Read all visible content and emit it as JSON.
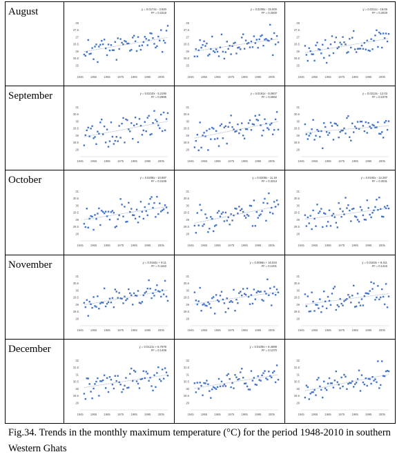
{
  "caption": "Fig.34. Trends in the monthly maximum temperature (°C) for the period 1948-2010 in southern Western Ghats",
  "x_ticks": [
    "1945",
    "1955",
    "1965",
    "1975",
    "1985",
    "1995",
    "2005"
  ],
  "chart_data": [
    {
      "type": "scatter",
      "month": "August",
      "panel": 1,
      "equation": "y = 0.0174x - 3.920",
      "r2": "R² = 0.2318",
      "ylim": [
        24.5,
        28.5
      ],
      "yticks": [
        "25",
        "25.5",
        "26",
        "26.5",
        "27",
        "27.5",
        "28"
      ],
      "seed": 11
    },
    {
      "type": "scatter",
      "month": "August",
      "panel": 2,
      "equation": "y = 0.0208x - 15.000",
      "r2": "R² = 0.2500",
      "ylim": [
        24.5,
        28.5
      ],
      "yticks": [
        "25",
        "25.5",
        "26",
        "26.5",
        "27",
        "27.5",
        "28"
      ],
      "seed": 12
    },
    {
      "type": "scatter",
      "month": "August",
      "panel": 3,
      "equation": "y = 0.0211x - 15.05",
      "r2": "R² = 0.3029",
      "ylim": [
        24.5,
        28.5
      ],
      "yticks": [
        "25",
        "25.5",
        "26",
        "26.5",
        "27",
        "27.5",
        "28"
      ],
      "seed": 13
    },
    {
      "type": "scatter",
      "month": "September",
      "panel": 1,
      "equation": "y = 0.0210x - 5.2190",
      "r2": "R² = 0.2885",
      "ylim": [
        27.5,
        31.5
      ],
      "yticks": [
        "28",
        "28.5",
        "29",
        "29.5",
        "30",
        "30.5",
        "31"
      ],
      "seed": 21
    },
    {
      "type": "scatter",
      "month": "September",
      "panel": 2,
      "equation": "y = 0.0191x - 8.0607",
      "r2": "R² = 0.2862",
      "ylim": [
        27.5,
        31.5
      ],
      "yticks": [
        "28",
        "28.5",
        "29",
        "29.5",
        "30",
        "30.5",
        "31"
      ],
      "seed": 22
    },
    {
      "type": "scatter",
      "month": "September",
      "panel": 3,
      "equation": "y = 0.0213x - 12.03",
      "r2": "R² = 0.2378",
      "ylim": [
        27.5,
        31.5
      ],
      "yticks": [
        "28",
        "28.5",
        "29",
        "29.5",
        "30",
        "30.5",
        "31"
      ],
      "seed": 23
    },
    {
      "type": "scatter",
      "month": "October",
      "panel": 1,
      "equation": "y = 0.0208x - 10.897",
      "r2": "R² = 0.3108",
      "ylim": [
        27.5,
        31.5
      ],
      "yticks": [
        "28",
        "28.5",
        "29",
        "29.5",
        "30",
        "30.5",
        "31"
      ],
      "seed": 31
    },
    {
      "type": "scatter",
      "month": "October",
      "panel": 2,
      "equation": "y = 0.0208x - 11.16",
      "r2": "R² = 0.3313",
      "ylim": [
        27.5,
        31.5
      ],
      "yticks": [
        "28",
        "28.5",
        "29",
        "29.5",
        "30",
        "30.5",
        "31"
      ],
      "seed": 32
    },
    {
      "type": "scatter",
      "month": "October",
      "panel": 3,
      "equation": "y = 0.0193x - 12.287",
      "r2": "R² = 0.3031",
      "ylim": [
        27.5,
        31.5
      ],
      "yticks": [
        "28",
        "28.5",
        "29",
        "29.5",
        "30",
        "30.5",
        "31"
      ],
      "seed": 33
    },
    {
      "type": "scatter",
      "month": "November",
      "panel": 1,
      "equation": "y = 0.0162x + 9.11",
      "r2": "R² = 0.1163",
      "ylim": [
        27.5,
        31.5
      ],
      "yticks": [
        "28",
        "28.5",
        "29",
        "29.5",
        "30",
        "30.5",
        "31"
      ],
      "seed": 41
    },
    {
      "type": "scatter",
      "month": "November",
      "panel": 2,
      "equation": "y = 0.0066x + 16.634",
      "r2": "R² = 0.1201",
      "ylim": [
        27.5,
        31.5
      ],
      "yticks": [
        "28",
        "28.5",
        "29",
        "29.5",
        "30",
        "30.5",
        "31"
      ],
      "seed": 42
    },
    {
      "type": "scatter",
      "month": "November",
      "panel": 3,
      "equation": "y = 0.0163x + 9.411",
      "r2": "R² = 0.1316",
      "ylim": [
        27.5,
        31.5
      ],
      "yticks": [
        "28",
        "28.5",
        "29",
        "29.5",
        "30",
        "30.5",
        "31"
      ],
      "seed": 43
    },
    {
      "type": "scatter",
      "month": "December",
      "panel": 1,
      "equation": "y = 0.0121x + 6.7978",
      "r2": "R² = 0.1408",
      "ylim": [
        28.5,
        32.5
      ],
      "yticks": [
        "29",
        "29.5",
        "30",
        "30.5",
        "31",
        "31.5",
        "32"
      ],
      "seed": 51
    },
    {
      "type": "scatter",
      "month": "December",
      "panel": 2,
      "equation": "y = 0.0109x + 8.4889",
      "r2": "R² = 0.1370",
      "ylim": [
        28.5,
        32.5
      ],
      "yticks": [
        "29",
        "29.5",
        "30",
        "30.5",
        "31",
        "31.5",
        "32"
      ],
      "seed": 52
    },
    {
      "type": "scatter",
      "month": "December",
      "panel": 3,
      "equation": "",
      "r2": "",
      "ylim": [
        28.5,
        32.5
      ],
      "yticks": [
        "29",
        "29.5",
        "30",
        "30.5",
        "31",
        "31.5",
        "32"
      ],
      "seed": 53
    }
  ]
}
